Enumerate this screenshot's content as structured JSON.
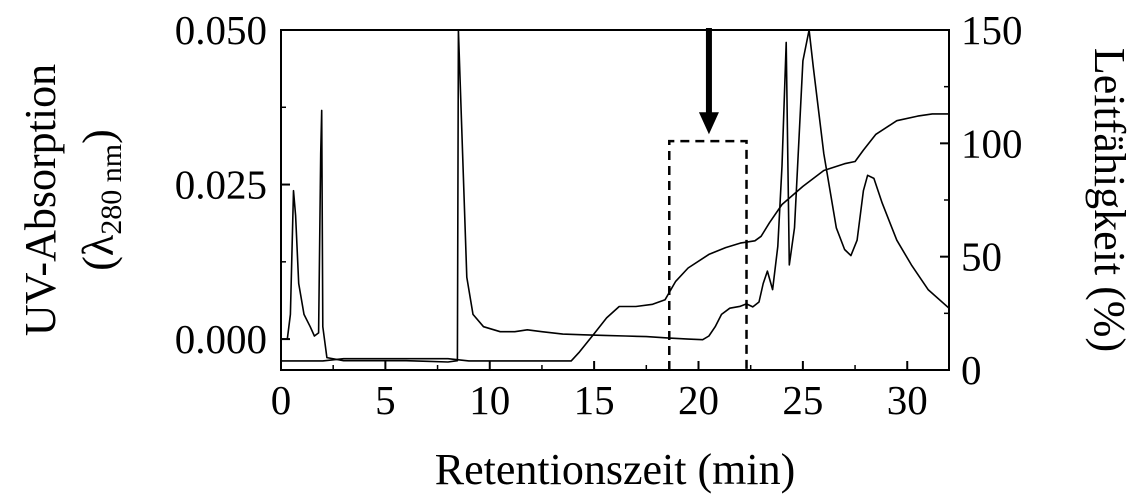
{
  "chart_data": {
    "type": "line",
    "title": "",
    "xlabel": "Retentionszeit (min)",
    "ylabel_left": "UV-Absorption",
    "ylabel_left_sub_pre": "(λ",
    "ylabel_left_sub": "280 nm",
    "ylabel_left_sub_post": ")",
    "ylabel_right": "Leitfähigkeit (%)",
    "xlim": [
      0,
      32
    ],
    "ylim_left": [
      -0.005,
      0.05
    ],
    "ylim_right": [
      0,
      150
    ],
    "x_ticks": [
      0,
      5,
      10,
      15,
      20,
      25,
      30
    ],
    "x_tick_labels": [
      "0",
      "5",
      "10",
      "15",
      "20",
      "25",
      "30"
    ],
    "y_left_ticks": [
      0.0,
      0.025,
      0.05
    ],
    "y_left_tick_labels": [
      "0.000",
      "0.025",
      "0.050"
    ],
    "y_right_ticks": [
      0,
      50,
      100,
      150
    ],
    "y_right_tick_labels": [
      "0",
      "50",
      "100",
      "150"
    ],
    "grid": false,
    "series": [
      {
        "axis": "left",
        "color": "#000000",
        "points": [
          [
            0,
            0.0
          ],
          [
            0.3,
            0.0
          ],
          [
            0.45,
            0.004
          ],
          [
            0.6,
            0.024
          ],
          [
            0.7,
            0.02
          ],
          [
            0.85,
            0.009
          ],
          [
            1.1,
            0.004
          ],
          [
            1.4,
            0.002
          ],
          [
            1.6,
            0.0005
          ],
          [
            1.8,
            0.001
          ],
          [
            1.9,
            0.03
          ],
          [
            1.95,
            0.037
          ],
          [
            2.0,
            0.002
          ],
          [
            2.2,
            -0.003
          ],
          [
            3,
            -0.0035
          ],
          [
            4,
            -0.0035
          ],
          [
            5,
            -0.0035
          ],
          [
            6,
            -0.0035
          ],
          [
            7,
            -0.0036
          ],
          [
            8,
            -0.0037
          ],
          [
            8.45,
            -0.0035
          ],
          [
            8.5,
            0.05
          ],
          [
            8.7,
            0.03
          ],
          [
            8.9,
            0.01
          ],
          [
            9.2,
            0.004
          ],
          [
            9.7,
            0.002
          ],
          [
            10.5,
            0.0012
          ],
          [
            11.2,
            0.0012
          ],
          [
            11.8,
            0.0015
          ],
          [
            12.5,
            0.0012
          ],
          [
            13.5,
            0.0008
          ],
          [
            14.5,
            0.0007
          ],
          [
            15.5,
            0.0006
          ],
          [
            16.5,
            0.0005
          ],
          [
            17.5,
            0.0004
          ],
          [
            18.5,
            0.0002
          ],
          [
            19.5,
            0.0
          ],
          [
            20.2,
            -0.0001
          ],
          [
            20.5,
            0.0005
          ],
          [
            20.8,
            0.002
          ],
          [
            21.1,
            0.004
          ],
          [
            21.5,
            0.005
          ],
          [
            22.0,
            0.0053
          ],
          [
            22.3,
            0.0057
          ],
          [
            22.6,
            0.0052
          ],
          [
            22.9,
            0.006
          ],
          [
            23.1,
            0.009
          ],
          [
            23.3,
            0.011
          ],
          [
            23.55,
            0.008
          ],
          [
            23.8,
            0.015
          ],
          [
            24.0,
            0.028
          ],
          [
            24.2,
            0.048
          ],
          [
            24.35,
            0.012
          ],
          [
            24.6,
            0.018
          ],
          [
            25.0,
            0.045
          ],
          [
            25.3,
            0.05
          ],
          [
            25.5,
            0.044
          ],
          [
            26.0,
            0.03
          ],
          [
            26.6,
            0.018
          ],
          [
            27.0,
            0.0145
          ],
          [
            27.3,
            0.0135
          ],
          [
            27.6,
            0.016
          ],
          [
            27.9,
            0.024
          ],
          [
            28.1,
            0.0265
          ],
          [
            28.4,
            0.026
          ],
          [
            28.8,
            0.022
          ],
          [
            29.5,
            0.016
          ],
          [
            30.2,
            0.012
          ],
          [
            31.0,
            0.008
          ],
          [
            32.0,
            0.005
          ]
        ]
      },
      {
        "axis": "right",
        "color": "#000000",
        "points": [
          [
            0,
            4
          ],
          [
            1,
            4
          ],
          [
            2,
            4
          ],
          [
            3,
            5
          ],
          [
            4,
            5
          ],
          [
            5,
            5
          ],
          [
            6,
            5
          ],
          [
            7,
            5
          ],
          [
            8,
            5
          ],
          [
            9,
            4
          ],
          [
            10,
            4
          ],
          [
            11,
            4
          ],
          [
            12,
            4
          ],
          [
            13,
            4
          ],
          [
            13.9,
            4
          ],
          [
            14.3,
            8
          ],
          [
            15.0,
            16
          ],
          [
            15.6,
            23
          ],
          [
            16.2,
            28
          ],
          [
            17.0,
            28
          ],
          [
            17.8,
            29
          ],
          [
            18.4,
            31
          ],
          [
            18.9,
            39
          ],
          [
            19.5,
            45
          ],
          [
            20.5,
            51
          ],
          [
            21.3,
            54
          ],
          [
            22.0,
            56
          ],
          [
            22.7,
            57
          ],
          [
            23.0,
            59
          ],
          [
            23.4,
            65
          ],
          [
            24.0,
            73
          ],
          [
            25.0,
            81
          ],
          [
            26.0,
            88
          ],
          [
            27.0,
            91
          ],
          [
            27.5,
            92
          ],
          [
            27.9,
            97
          ],
          [
            28.5,
            104
          ],
          [
            29.5,
            110
          ],
          [
            30.5,
            112
          ],
          [
            31.2,
            113
          ],
          [
            32.0,
            113
          ]
        ]
      }
    ],
    "annotations": {
      "dashed_box": {
        "x_start": 18.6,
        "x_end": 22.3,
        "y_top_right_axis": 101,
        "style": "dashed"
      },
      "arrow": {
        "x": 20.5,
        "y_tip_right_axis": 104,
        "direction": "down"
      }
    }
  }
}
